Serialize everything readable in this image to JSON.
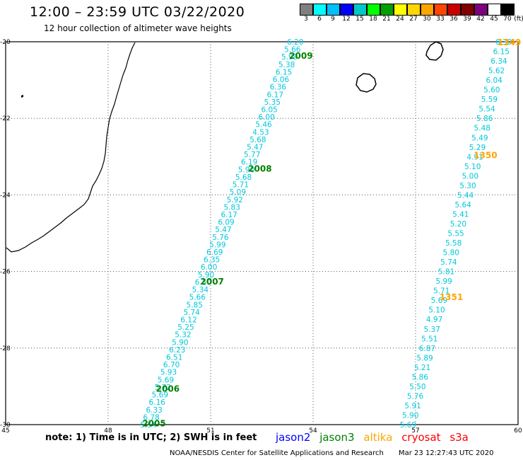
{
  "title": "12:00 – 23:59 UTC 03/22/2020",
  "subtitle": "12 hour collection of altimeter wave heights",
  "scale": {
    "unit": "(ft)",
    "colors": [
      "#808080",
      "#00ffff",
      "#00bfff",
      "#0000ff",
      "#00c8c8",
      "#00ff00",
      "#00a000",
      "#ffff00",
      "#ffd700",
      "#ffa500",
      "#ff4500",
      "#c80000",
      "#800000",
      "#800080",
      "#ffffff",
      "#000000"
    ],
    "labels": [
      "3",
      "6",
      "9",
      "12",
      "15",
      "18",
      "21",
      "24",
      "27",
      "30",
      "33",
      "36",
      "39",
      "42",
      "45",
      "70"
    ]
  },
  "map_extent": {
    "lon": [
      45,
      60
    ],
    "lat": [
      -30,
      -20
    ]
  },
  "x_ticks": [
    "45",
    "48",
    "51",
    "54",
    "57",
    "60"
  ],
  "y_ticks": [
    "-20",
    "-22",
    "-24",
    "-26",
    "-28",
    "-30"
  ],
  "colors": {
    "jason2": "#0000ff",
    "jason3": "#008000",
    "altika": "#ffa500",
    "cryosat": "#ff0000",
    "s3a": "#ff0000",
    "track": "#00c8dc"
  },
  "tracks": [
    {
      "satellite": "jason3",
      "lon_start": 49.0,
      "lon_end": 53.3,
      "values": [
        "6.20",
        "5.66",
        "5.99",
        "5.38",
        "6.15",
        "6.06",
        "6.36",
        "6.17",
        "5.35",
        "6.05",
        "6.00",
        "5.46",
        "4.53",
        "5.68",
        "5.47",
        "5.77",
        "6.19",
        "5.90",
        "5.68",
        "5.71",
        "5.09",
        "5.92",
        "5.83",
        "6.17",
        "6.09",
        "5.47",
        "5.76",
        "5.99",
        "6.69",
        "6.35",
        "6.00",
        "5.90",
        "6.50",
        "5.34",
        "5.66",
        "5.85",
        "5.74",
        "6.12",
        "5.25",
        "5.32",
        "5.90",
        "6.23",
        "6.51",
        "6.70",
        "5.93",
        "5.69",
        "5.72",
        "5.69",
        "6.16",
        "6.33",
        "6.78",
        "5.54"
      ]
    },
    {
      "satellite": "altika",
      "lon_start": 56.6,
      "lon_end": 59.4,
      "values": [
        "6.39",
        "6.15",
        "6.34",
        "5.62",
        "6.04",
        "5.60",
        "5.59",
        "5.54",
        "5.86",
        "5.48",
        "5.49",
        "5.29",
        "4.91",
        "5.10",
        "5.00",
        "5.30",
        "5.44",
        "5.64",
        "5.41",
        "5.20",
        "5.55",
        "5.58",
        "5.80",
        "5.74",
        "5.81",
        "5.99",
        "5.71",
        "5.69",
        "5.10",
        "4.97",
        "5.37",
        "5.51",
        "6.87",
        "5.89",
        "5.21",
        "5.86",
        "5.50",
        "5.76",
        "5.91",
        "5.90",
        "5.69"
      ]
    }
  ],
  "cycles": [
    {
      "text": "2009",
      "lon": 53.3,
      "lat": -20.35,
      "sat": "jason3"
    },
    {
      "text": "2008",
      "lon": 52.1,
      "lat": -23.3,
      "sat": "jason3"
    },
    {
      "text": "2007",
      "lon": 50.7,
      "lat": -26.25,
      "sat": "jason3"
    },
    {
      "text": "2006",
      "lon": 49.4,
      "lat": -29.05,
      "sat": "jason3"
    },
    {
      "text": "2005",
      "lon": 49.0,
      "lat": -29.95,
      "sat": "jason3"
    },
    {
      "text": "1349",
      "lon": 59.4,
      "lat": -20.0,
      "sat": "altika"
    },
    {
      "text": "1350",
      "lon": 58.7,
      "lat": -22.95,
      "sat": "altika"
    },
    {
      "text": "1351",
      "lon": 57.7,
      "lat": -26.65,
      "sat": "altika"
    }
  ],
  "note": "note:  1) Time is in UTC;  2) SWH is in feet",
  "legend": {
    "jason2": "jason2",
    "jason3": "jason3",
    "altika": "altika",
    "cryosat": "cryosat",
    "s3a": "s3a"
  },
  "credit": "NOAA/NESDIS Center for Satellite Applications and Research",
  "timestamp": "Mar 23 12:27:43 UTC 2020"
}
